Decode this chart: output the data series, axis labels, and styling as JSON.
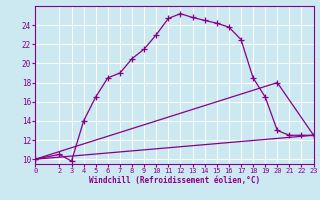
{
  "xlabel": "Windchill (Refroidissement éolien,°C)",
  "bg_color": "#cce8f0",
  "grid_color": "#ffffff",
  "line_color": "#880088",
  "xmin": 0,
  "xmax": 23,
  "ymin": 9.5,
  "ymax": 26,
  "yticks": [
    10,
    12,
    14,
    16,
    18,
    20,
    22,
    24
  ],
  "xticks": [
    0,
    2,
    3,
    4,
    5,
    6,
    7,
    8,
    9,
    10,
    11,
    12,
    13,
    14,
    15,
    16,
    17,
    18,
    19,
    20,
    21,
    22,
    23
  ],
  "curve1_x": [
    0,
    2,
    3,
    4,
    5,
    6,
    7,
    8,
    9,
    10,
    11,
    12,
    13,
    14,
    15,
    16,
    17,
    18,
    19,
    20,
    21,
    22,
    23
  ],
  "curve1_y": [
    10.0,
    10.5,
    9.8,
    14.0,
    16.5,
    18.5,
    19.0,
    20.5,
    21.5,
    23.0,
    24.7,
    25.2,
    24.8,
    24.5,
    24.2,
    23.8,
    22.5,
    18.5,
    16.5,
    13.0,
    12.5,
    12.5,
    12.5
  ],
  "curve2_x": [
    0,
    20,
    23
  ],
  "curve2_y": [
    10.0,
    18.0,
    12.5
  ],
  "curve3_x": [
    0,
    23
  ],
  "curve3_y": [
    10.0,
    12.5
  ]
}
